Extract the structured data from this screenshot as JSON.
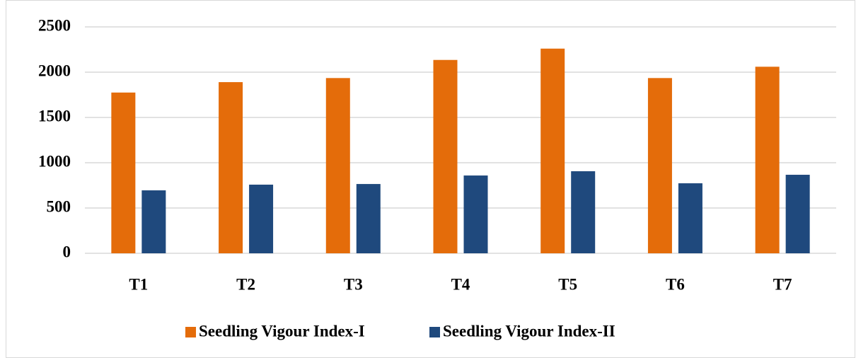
{
  "chart_data": {
    "type": "bar",
    "categories": [
      "T1",
      "T2",
      "T3",
      "T4",
      "T5",
      "T6",
      "T7"
    ],
    "series": [
      {
        "name": "Seedling Vigour Index-I",
        "color": "#e46c0a",
        "values": [
          1775,
          1890,
          1935,
          2135,
          2260,
          1935,
          2060
        ]
      },
      {
        "name": "Seedling Vigour Index-II",
        "color": "#1f497d",
        "values": [
          695,
          758,
          765,
          859,
          906,
          773,
          867
        ]
      }
    ],
    "ylim": [
      0,
      2500
    ],
    "yticks": [
      0,
      500,
      1000,
      1500,
      2000,
      2500
    ],
    "grid": true,
    "legend": "bottom"
  }
}
